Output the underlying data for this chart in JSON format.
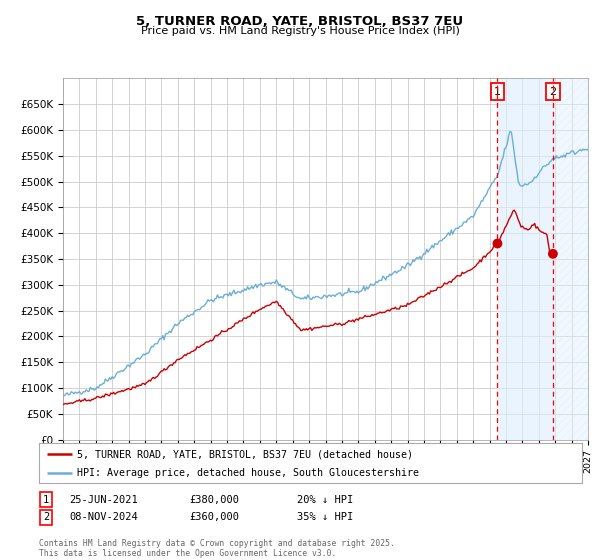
{
  "title": "5, TURNER ROAD, YATE, BRISTOL, BS37 7EU",
  "subtitle": "Price paid vs. HM Land Registry's House Price Index (HPI)",
  "ylim": [
    0,
    700000
  ],
  "yticks": [
    0,
    50000,
    100000,
    150000,
    200000,
    250000,
    300000,
    350000,
    400000,
    450000,
    500000,
    550000,
    600000,
    650000
  ],
  "ytick_labels": [
    "£0",
    "£50K",
    "£100K",
    "£150K",
    "£200K",
    "£250K",
    "£300K",
    "£350K",
    "£400K",
    "£450K",
    "£500K",
    "£550K",
    "£600K",
    "£650K"
  ],
  "xlim_start": 1995.0,
  "xlim_end": 2027.0,
  "hpi_color": "#6baed6",
  "price_color": "#cc0000",
  "sale1_year": 2021.48,
  "sale1_price": 380000,
  "sale2_year": 2024.86,
  "sale2_price": 360000,
  "shade_start": 2021.48,
  "shade_end": 2024.86,
  "hatch_start": 2024.86,
  "hatch_end": 2027.0,
  "shade_color": "#ddeeff",
  "hatch_color": "#ddeeff",
  "legend_label1": "5, TURNER ROAD, YATE, BRISTOL, BS37 7EU (detached house)",
  "legend_label2": "HPI: Average price, detached house, South Gloucestershire",
  "ann1_label": "1",
  "ann1_date": "25-JUN-2021",
  "ann1_price": "£380,000",
  "ann1_hpi": "20% ↓ HPI",
  "ann2_label": "2",
  "ann2_date": "08-NOV-2024",
  "ann2_price": "£360,000",
  "ann2_hpi": "35% ↓ HPI",
  "footer": "Contains HM Land Registry data © Crown copyright and database right 2025.\nThis data is licensed under the Open Government Licence v3.0.",
  "background_color": "#ffffff",
  "grid_color": "#cccccc"
}
